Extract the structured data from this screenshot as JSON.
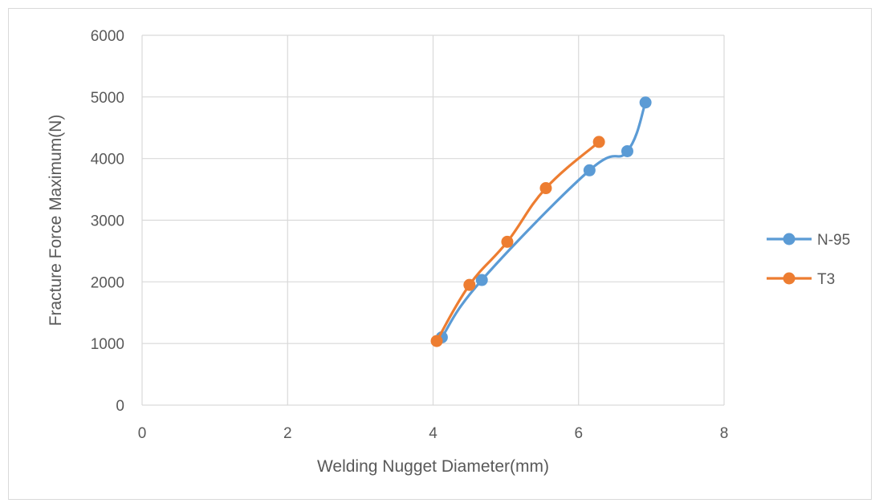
{
  "chart_data": {
    "type": "scatter",
    "title": "",
    "xlabel": "Welding Nugget Diameter(mm)",
    "ylabel": "Fracture Force Maximum(N)",
    "xlim": [
      0,
      8
    ],
    "ylim": [
      0,
      6000
    ],
    "x_ticks": [
      0,
      2,
      4,
      6,
      8
    ],
    "y_ticks": [
      0,
      1000,
      2000,
      3000,
      4000,
      5000,
      6000
    ],
    "grid": true,
    "legend_position": "right",
    "series": [
      {
        "name": "N-95",
        "color": "#5b9bd5",
        "x": [
          4.12,
          4.67,
          6.15,
          6.67,
          6.92
        ],
        "y": [
          1100,
          2030,
          3810,
          4120,
          4910
        ]
      },
      {
        "name": "T3",
        "color": "#ed7d31",
        "x": [
          4.05,
          4.5,
          5.02,
          5.55,
          6.28
        ],
        "y": [
          1040,
          1950,
          2650,
          3520,
          4270
        ]
      }
    ]
  }
}
